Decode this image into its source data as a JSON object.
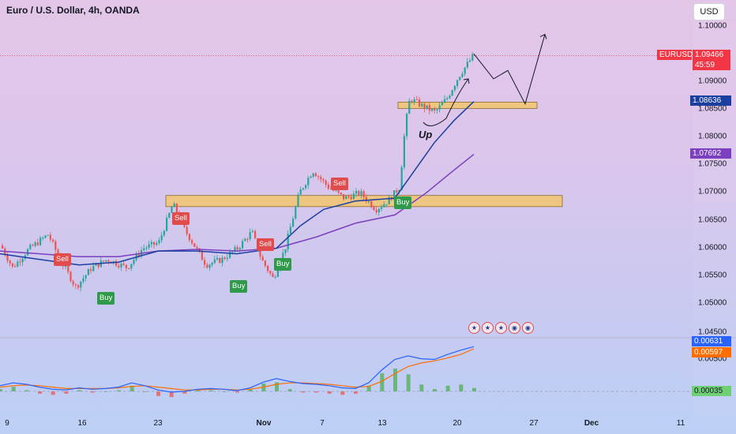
{
  "title": "Euro / U.S. Dollar, 4h, OANDA",
  "currency_button": "USD",
  "annotation": "Up",
  "price_axis": {
    "ticks": [
      "1.10000",
      "1.09000",
      "1.08500",
      "1.08000",
      "1.07500",
      "1.07000",
      "1.06500",
      "1.06000",
      "1.05500",
      "1.05000",
      "1.04500",
      "0.00500"
    ]
  },
  "time_axis": {
    "ticks": [
      "9",
      "16",
      "23",
      "Nov",
      "7",
      "13",
      "20",
      "27",
      "Dec",
      "11"
    ]
  },
  "price_labels": {
    "symbol": "EURUSD",
    "last": "1.09466",
    "countdown": "45:59",
    "ma_fast": "1.08636",
    "ma_slow": "1.07692"
  },
  "indicator_labels": {
    "macd": "0.00631",
    "signal": "0.00597",
    "histogram": "0.00035"
  },
  "signals": [
    {
      "type": "Sell",
      "kind": "sell"
    },
    {
      "type": "Buy",
      "kind": "buy"
    },
    {
      "type": "Sell",
      "kind": "sell"
    },
    {
      "type": "Buy",
      "kind": "buy"
    },
    {
      "type": "Sell",
      "kind": "sell"
    },
    {
      "type": "Buy",
      "kind": "buy"
    },
    {
      "type": "Sell",
      "kind": "sell"
    },
    {
      "type": "Buy",
      "kind": "buy"
    }
  ],
  "event_icons": [
    "flag-icon",
    "flag-icon",
    "flag-icon",
    "globe-icon",
    "globe-icon"
  ],
  "colors": {
    "up_candle": "#26a69a",
    "down_candle": "#ef5350",
    "ma_fast": "#1a3fa0",
    "ma_slow": "#7b3fbf",
    "zone_fill": "#f2c66d",
    "last_price": "#f23645",
    "macd_line": "#2962ff",
    "signal_line": "#ff6d00",
    "hist_up": "#4caf50",
    "hist_down": "#ef5350"
  },
  "chart_data": {
    "type": "candlestick",
    "symbol": "EURUSD",
    "interval": "4h",
    "ylim": [
      1.044,
      1.1005
    ],
    "price_path": [
      [
        0,
        1.0605
      ],
      [
        15,
        1.0565
      ],
      [
        35,
        1.0598
      ],
      [
        60,
        1.0625
      ],
      [
        75,
        1.058
      ],
      [
        95,
        1.053
      ],
      [
        115,
        1.0565
      ],
      [
        135,
        1.058
      ],
      [
        160,
        1.0565
      ],
      [
        180,
        1.06
      ],
      [
        200,
        1.061
      ],
      [
        218,
        1.068
      ],
      [
        230,
        1.064
      ],
      [
        245,
        1.0605
      ],
      [
        260,
        1.057
      ],
      [
        280,
        1.058
      ],
      [
        300,
        1.06
      ],
      [
        318,
        1.063
      ],
      [
        330,
        1.058
      ],
      [
        345,
        1.0545
      ],
      [
        360,
        1.06
      ],
      [
        378,
        1.07
      ],
      [
        395,
        1.074
      ],
      [
        415,
        1.071
      ],
      [
        435,
        1.069
      ],
      [
        455,
        1.07
      ],
      [
        475,
        1.067
      ],
      [
        490,
        1.0685
      ],
      [
        505,
        1.071
      ],
      [
        512,
        1.082
      ],
      [
        518,
        1.087
      ],
      [
        535,
        1.0855
      ],
      [
        550,
        1.0845
      ],
      [
        565,
        1.087
      ],
      [
        580,
        1.091
      ],
      [
        600,
        1.095
      ]
    ],
    "ma_fast": [
      [
        0,
        1.059
      ],
      [
        50,
        1.058
      ],
      [
        100,
        1.057
      ],
      [
        150,
        1.0575
      ],
      [
        200,
        1.0595
      ],
      [
        250,
        1.0595
      ],
      [
        300,
        1.059
      ],
      [
        350,
        1.06
      ],
      [
        380,
        1.064
      ],
      [
        410,
        1.067
      ],
      [
        450,
        1.0685
      ],
      [
        500,
        1.069
      ],
      [
        520,
        1.073
      ],
      [
        550,
        1.079
      ],
      [
        575,
        1.083
      ],
      [
        600,
        1.0864
      ]
    ],
    "ma_slow": [
      [
        0,
        1.0595
      ],
      [
        50,
        1.059
      ],
      [
        100,
        1.0585
      ],
      [
        150,
        1.0585
      ],
      [
        200,
        1.0595
      ],
      [
        250,
        1.0598
      ],
      [
        300,
        1.0595
      ],
      [
        350,
        1.06
      ],
      [
        400,
        1.062
      ],
      [
        450,
        1.0645
      ],
      [
        500,
        1.066
      ],
      [
        540,
        1.07
      ],
      [
        570,
        1.0735
      ],
      [
        600,
        1.0769
      ]
    ],
    "zones": [
      {
        "price_low": 1.0675,
        "price_high": 1.0695
      },
      {
        "price_low": 1.0852,
        "price_high": 1.0863
      }
    ],
    "projection": [
      1.095,
      1.0905,
      1.092,
      1.086,
      1.0985
    ],
    "macd": [
      0.0008,
      0.0012,
      0.001,
      0.0006,
      0.0003,
      0.0002,
      0.0005,
      0.0003,
      0.0004,
      0.0006,
      0.0012,
      0.0008,
      0.0002,
      -0.0001,
      0.0,
      0.0003,
      0.0004,
      0.0003,
      0.0001,
      0.0005,
      0.0013,
      0.0018,
      0.0014,
      0.0011,
      0.001,
      0.0008,
      0.0005,
      0.0004,
      0.0012,
      0.003,
      0.0045,
      0.005,
      0.0046,
      0.0045,
      0.0052,
      0.0058,
      0.0063
    ],
    "signal": [
      0.0006,
      0.0008,
      0.0009,
      0.0008,
      0.0006,
      0.0004,
      0.0004,
      0.0004,
      0.0004,
      0.0005,
      0.0007,
      0.0008,
      0.0006,
      0.0004,
      0.0002,
      0.0002,
      0.0003,
      0.0003,
      0.0002,
      0.0003,
      0.0006,
      0.001,
      0.0012,
      0.0012,
      0.0011,
      0.001,
      0.0008,
      0.0006,
      0.0007,
      0.0014,
      0.0025,
      0.0035,
      0.004,
      0.0043,
      0.0047,
      0.0052,
      0.006
    ]
  }
}
